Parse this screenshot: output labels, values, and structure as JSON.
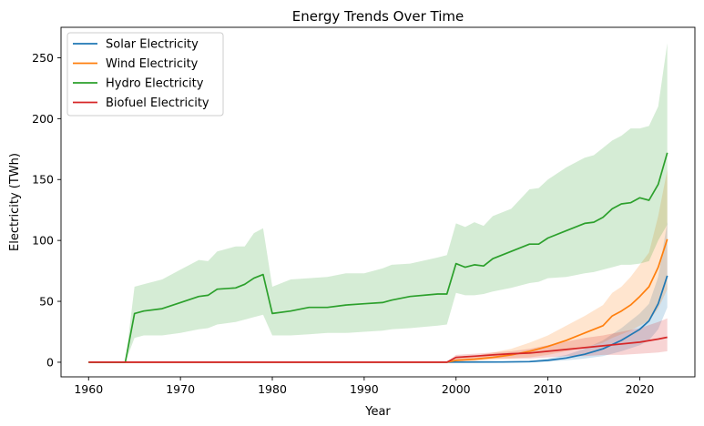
{
  "chart_data": {
    "type": "line",
    "title": "Energy Trends Over Time",
    "xlabel": "Year",
    "ylabel": "Electricity (TWh)",
    "xlim": [
      1957,
      2026
    ],
    "ylim": [
      -12,
      275
    ],
    "xticks": [
      1960,
      1970,
      1980,
      1990,
      2000,
      2010,
      2020
    ],
    "yticks": [
      0,
      50,
      100,
      150,
      200,
      250
    ],
    "grid": false,
    "legend_position": "top-left",
    "series": [
      {
        "name": "Solar Electricity",
        "color": "#1f77b4",
        "points": [
          [
            1960,
            0,
            0,
            0
          ],
          [
            1999,
            0,
            0,
            0
          ],
          [
            2000,
            0.1,
            0,
            0.3
          ],
          [
            2005,
            0.2,
            0,
            0.6
          ],
          [
            2008,
            0.5,
            0.1,
            1.2
          ],
          [
            2010,
            1.5,
            0.5,
            3
          ],
          [
            2012,
            3.5,
            1.5,
            6
          ],
          [
            2014,
            6.5,
            3,
            11
          ],
          [
            2016,
            11,
            5,
            18
          ],
          [
            2018,
            18,
            9,
            28
          ],
          [
            2020,
            27,
            14,
            40
          ],
          [
            2021,
            34,
            18,
            48
          ],
          [
            2022,
            48,
            27,
            70
          ],
          [
            2023,
            71,
            45,
            115
          ]
        ]
      },
      {
        "name": "Wind Electricity",
        "color": "#ff7f0e",
        "points": [
          [
            1960,
            0,
            0,
            0
          ],
          [
            1999,
            0,
            0,
            0
          ],
          [
            2000,
            1.5,
            0.5,
            3
          ],
          [
            2002,
            2.5,
            1,
            5
          ],
          [
            2004,
            4,
            2,
            8
          ],
          [
            2006,
            6,
            3,
            11
          ],
          [
            2008,
            9,
            4,
            16
          ],
          [
            2010,
            13,
            6,
            22
          ],
          [
            2012,
            18,
            9,
            30
          ],
          [
            2014,
            24,
            12,
            38
          ],
          [
            2016,
            30,
            16,
            47
          ],
          [
            2017,
            38,
            20,
            57
          ],
          [
            2018,
            42,
            23,
            62
          ],
          [
            2019,
            47,
            26,
            70
          ],
          [
            2020,
            54,
            30,
            80
          ],
          [
            2021,
            62,
            34,
            90
          ],
          [
            2022,
            78,
            44,
            120
          ],
          [
            2023,
            101,
            60,
            158
          ]
        ]
      },
      {
        "name": "Hydro Electricity",
        "color": "#2ca02c",
        "points": [
          [
            1960,
            0,
            0,
            0
          ],
          [
            1964,
            0,
            0,
            0
          ],
          [
            1965,
            40,
            20,
            62
          ],
          [
            1966,
            42,
            22,
            64
          ],
          [
            1968,
            44,
            22,
            68
          ],
          [
            1970,
            49,
            24,
            76
          ],
          [
            1972,
            54,
            27,
            84
          ],
          [
            1973,
            55,
            28,
            83
          ],
          [
            1974,
            60,
            31,
            91
          ],
          [
            1976,
            61,
            33,
            95
          ],
          [
            1977,
            64,
            35,
            95
          ],
          [
            1978,
            69,
            37,
            106
          ],
          [
            1979,
            72,
            39,
            110
          ],
          [
            1980,
            40,
            22,
            62
          ],
          [
            1982,
            42,
            22,
            68
          ],
          [
            1984,
            45,
            23,
            69
          ],
          [
            1986,
            45,
            24,
            70
          ],
          [
            1988,
            47,
            24,
            73
          ],
          [
            1990,
            48,
            25,
            73
          ],
          [
            1992,
            49,
            26,
            77
          ],
          [
            1993,
            51,
            27,
            80
          ],
          [
            1995,
            54,
            28,
            81
          ],
          [
            1998,
            56,
            30,
            86
          ],
          [
            1999,
            56,
            31,
            88
          ],
          [
            2000,
            81,
            57,
            114
          ],
          [
            2001,
            78,
            55,
            111
          ],
          [
            2002,
            80,
            55,
            115
          ],
          [
            2003,
            79,
            56,
            112
          ],
          [
            2004,
            85,
            58,
            120
          ],
          [
            2006,
            91,
            61,
            126
          ],
          [
            2008,
            97,
            65,
            142
          ],
          [
            2009,
            97,
            66,
            143
          ],
          [
            2010,
            102,
            69,
            150
          ],
          [
            2012,
            108,
            70,
            160
          ],
          [
            2014,
            114,
            73,
            168
          ],
          [
            2015,
            115,
            74,
            170
          ],
          [
            2016,
            119,
            76,
            176
          ],
          [
            2017,
            126,
            78,
            182
          ],
          [
            2018,
            130,
            80,
            186
          ],
          [
            2019,
            131,
            80,
            192
          ],
          [
            2020,
            135,
            81,
            192
          ],
          [
            2021,
            133,
            83,
            194
          ],
          [
            2022,
            146,
            100,
            210
          ],
          [
            2023,
            172,
            113,
            262
          ]
        ]
      },
      {
        "name": "Biofuel Electricity",
        "color": "#d62728",
        "points": [
          [
            1960,
            0,
            0,
            0
          ],
          [
            1999,
            0,
            0,
            0
          ],
          [
            2000,
            4,
            1,
            6
          ],
          [
            2002,
            5,
            2,
            7
          ],
          [
            2004,
            6,
            3,
            8
          ],
          [
            2006,
            7,
            3,
            9
          ],
          [
            2008,
            7.5,
            3,
            11
          ],
          [
            2010,
            9,
            4,
            14
          ],
          [
            2012,
            10.5,
            5,
            17
          ],
          [
            2014,
            12,
            5,
            20
          ],
          [
            2016,
            13.5,
            6,
            22
          ],
          [
            2018,
            15,
            6,
            25
          ],
          [
            2020,
            16.5,
            7,
            28
          ],
          [
            2022,
            19,
            8,
            33
          ],
          [
            2023,
            20.5,
            9,
            36
          ]
        ]
      }
    ]
  }
}
